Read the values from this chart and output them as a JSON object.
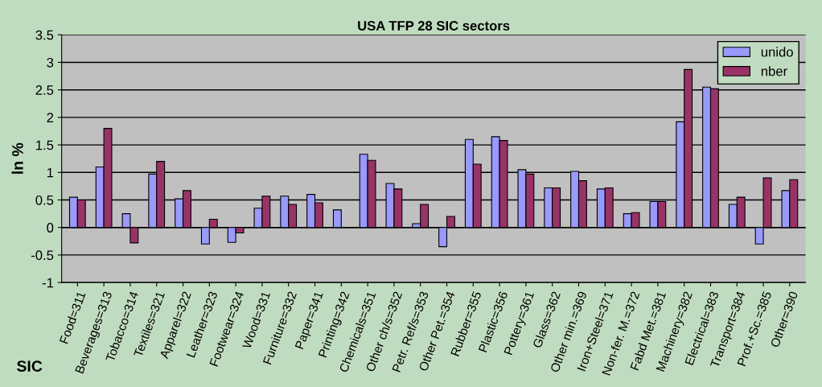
{
  "chart_data": {
    "type": "bar",
    "title": "USA TFP 28 SIC sectors",
    "xlabel": "SIC",
    "ylabel": "ln %",
    "categories": [
      "Food=311",
      "Beverages=313",
      "Tobacco=314",
      "Textiles=321",
      "Apparel=322",
      "Leather=323",
      "Footwear=324",
      "Wood=331",
      "Furniture=332",
      "Paper=341",
      "Printing=342",
      "Chemicals=351",
      "Other ch/s=352",
      "Petr. Ref/s=353",
      "Other Pet.=354",
      "Rubber=355",
      "Plastic=356",
      "Pottery=361",
      "Glass=362",
      "Other min.=369",
      "Iron+Steel=371",
      "Non-fer. M.=372",
      "Fabd Met.=381",
      "Machinery=382",
      "Electrical=383",
      "Transport=384",
      "Prof.+Sc.=385",
      "Other=390"
    ],
    "series": [
      {
        "name": "unido",
        "color": "#9999ff",
        "values": [
          0.55,
          1.1,
          0.25,
          0.97,
          0.52,
          -0.3,
          -0.27,
          0.35,
          0.57,
          0.6,
          0.32,
          1.33,
          0.8,
          0.07,
          -0.35,
          1.6,
          1.65,
          1.05,
          0.72,
          1.02,
          0.7,
          0.25,
          0.47,
          1.92,
          2.55,
          0.42,
          -0.3,
          0.67
        ]
      },
      {
        "name": "nber",
        "color": "#993366",
        "values": [
          0.5,
          1.8,
          -0.28,
          1.2,
          0.67,
          0.15,
          -0.1,
          0.57,
          0.42,
          0.45,
          null,
          1.22,
          0.7,
          0.42,
          0.2,
          1.15,
          1.58,
          0.97,
          0.72,
          0.85,
          0.72,
          0.27,
          0.47,
          2.87,
          2.52,
          0.55,
          0.9,
          0.87
        ]
      }
    ],
    "ylim": [
      -1,
      3.5
    ],
    "yticks": [
      -1,
      -0.5,
      0,
      0.5,
      1,
      1.5,
      2,
      2.5,
      3,
      3.5
    ],
    "grid": "y",
    "legend": "top right"
  }
}
